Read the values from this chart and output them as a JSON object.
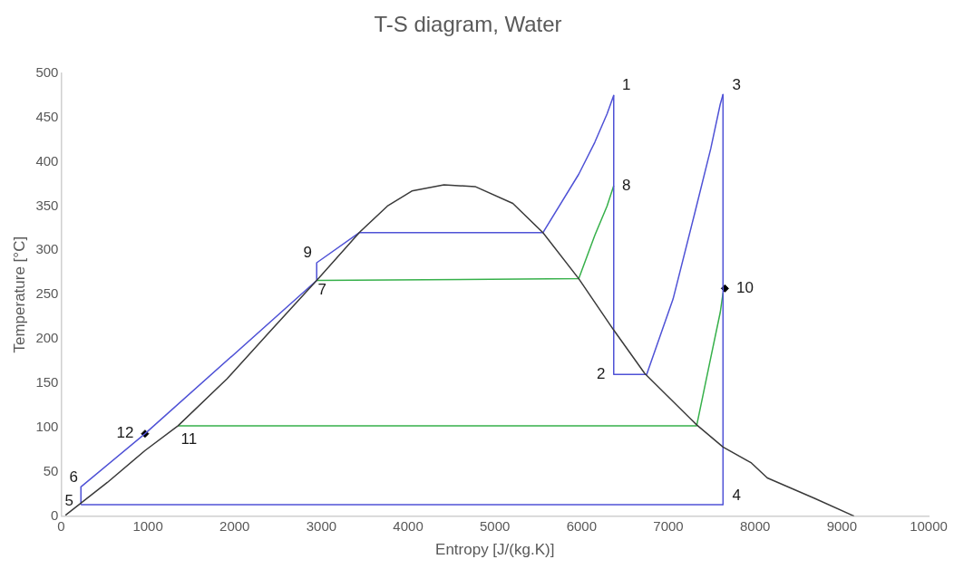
{
  "chart_data": {
    "type": "line",
    "title": "T-S diagram, Water",
    "xlabel": "Entropy [J/(kg.K)]",
    "ylabel": "Temperature [°C]",
    "xlim": [
      0,
      10000
    ],
    "xticks": [
      0,
      1000,
      2000,
      3000,
      4000,
      5000,
      6000,
      7000,
      8000,
      9000,
      10000
    ],
    "ylim": [
      0,
      500
    ],
    "yticks": [
      0,
      50,
      100,
      150,
      200,
      250,
      300,
      350,
      400,
      450,
      500
    ],
    "grid": false,
    "legend": false,
    "marker": "none",
    "line_style": "solid",
    "series": [
      {
        "color": "#3a3a3a",
        "x": [
          50,
          533,
          967,
          1348,
          1913,
          2413,
          2946,
          3446,
          3761,
          4043,
          4413,
          4772,
          5207,
          5554,
          5967,
          6370,
          6728,
          7326,
          7630,
          7957,
          8141,
          8685,
          9141
        ],
        "values": [
          1,
          38,
          74,
          102,
          155,
          209,
          266,
          321,
          350,
          367,
          374,
          372,
          353,
          320,
          268,
          210,
          161,
          103,
          78,
          60,
          43,
          20,
          0
        ]
      },
      {
        "color": "#4f52d6",
        "x": [
          228,
          228,
          967,
          2946,
          2946,
          3435,
          5554,
          5967,
          6152,
          6293,
          6370
        ],
        "values": [
          13,
          33,
          93,
          266,
          286,
          320,
          320,
          386,
          422,
          454,
          475
        ]
      },
      {
        "color": "#4f52d6",
        "x": [
          6370,
          6370,
          6750,
          7054,
          7304,
          7489,
          7598,
          7630
        ],
        "values": [
          475,
          160,
          160,
          245,
          342,
          415,
          465,
          476
        ]
      },
      {
        "color": "#4f52d6",
        "x": [
          7630,
          7630
        ],
        "values": [
          476,
          13
        ]
      },
      {
        "color": "#4f52d6",
        "x": [
          228,
          7630
        ],
        "values": [
          13,
          13
        ]
      },
      {
        "color": "#36b04a",
        "x": [
          2946,
          5967,
          6152,
          6293,
          6370
        ],
        "values": [
          266,
          268,
          317,
          350,
          373
        ]
      },
      {
        "color": "#36b04a",
        "x": [
          1348,
          7326,
          7489,
          7598,
          7630
        ],
        "values": [
          102,
          102,
          179,
          230,
          252
        ]
      },
      {
        "type": "scatter",
        "color": "#000000",
        "marker": "diamond",
        "x": [
          967,
          7652
        ],
        "values": [
          93,
          257
        ]
      }
    ],
    "annotations": [
      {
        "text": "1",
        "x": 6370,
        "y": 475
      },
      {
        "text": "2",
        "x": 6370,
        "y": 160
      },
      {
        "text": "3",
        "x": 7630,
        "y": 476
      },
      {
        "text": "4",
        "x": 7630,
        "y": 13
      },
      {
        "text": "5",
        "x": 228,
        "y": 13
      },
      {
        "text": "6",
        "x": 228,
        "y": 33
      },
      {
        "text": "7",
        "x": 2946,
        "y": 266
      },
      {
        "text": "8",
        "x": 6370,
        "y": 373
      },
      {
        "text": "9",
        "x": 2946,
        "y": 286
      },
      {
        "text": "10",
        "x": 7652,
        "y": 257
      },
      {
        "text": "11",
        "x": 1348,
        "y": 102
      },
      {
        "text": "12",
        "x": 967,
        "y": 93
      }
    ]
  }
}
